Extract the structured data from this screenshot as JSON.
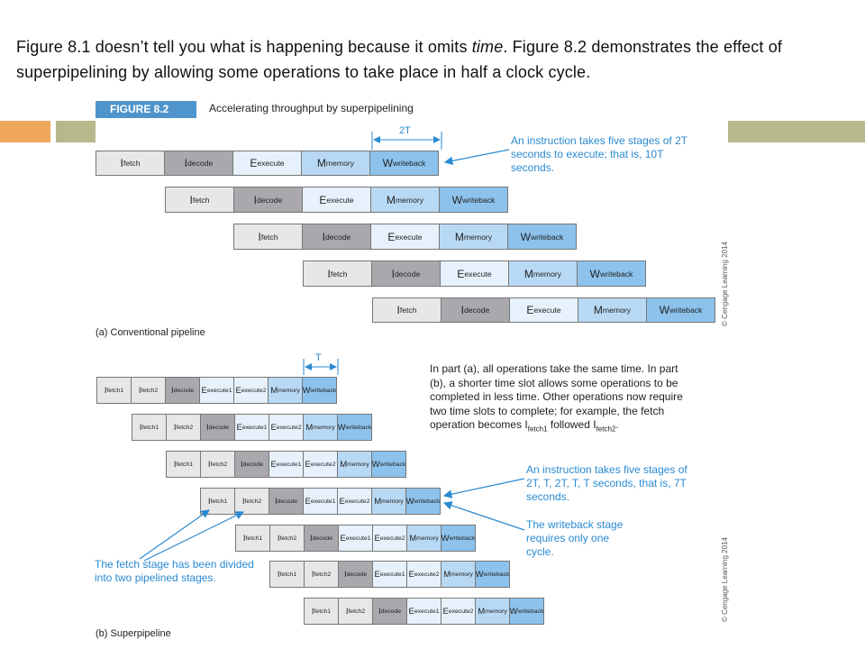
{
  "intro": {
    "part1": "Figure 8.1 doesn’t tell you what is happening because it omits ",
    "part_italic": "time",
    "part2": ". Figure 8.2 demonstrates the effect of superpipelining by allowing some operations to take place in half a clock cycle."
  },
  "figure": {
    "badge": "FIGURE 8.2",
    "caption": "Accelerating throughput by superpipelining",
    "copyright": "© Cengage Learning 2014"
  },
  "part_a": {
    "label": "(a) Conventional pipeline",
    "dimension_label": "2T",
    "note": "An instruction takes five stages of 2T seconds to execute; that is, 10T seconds.",
    "stages": [
      {
        "main": "I",
        "sub": "fetch",
        "kind": "fetch"
      },
      {
        "main": "I",
        "sub": "decode",
        "kind": "decode"
      },
      {
        "main": "E",
        "sub": "execute",
        "kind": "execute"
      },
      {
        "main": "M",
        "sub": "memory",
        "kind": "memory"
      },
      {
        "main": "W",
        "sub": "writeback",
        "kind": "writeback"
      }
    ]
  },
  "part_b": {
    "label": "(b) Superpipeline",
    "dimension_label": "T",
    "explanation_1": "In part (a), all operations take the same time. In part (b), a shorter time slot allows some operations to be completed in less time. Other operations now require two time slots to complete; for example, the fetch operation becomes I",
    "explanation_sub1": "fetch1",
    "explanation_2": " followed I",
    "explanation_sub2": "fetch2",
    "explanation_3": ".",
    "note_stages": "An instruction takes five stages of 2T, T, 2T, T, T seconds, that is, 7T seconds.",
    "note_writeback": "The writeback stage requires only one cycle.",
    "note_fetch": "The fetch stage has been divided into two pipelined stages.",
    "stages": [
      {
        "main": "I",
        "sub": "fetch1",
        "kind": "fetch"
      },
      {
        "main": "I",
        "sub": "fetch2",
        "kind": "fetch"
      },
      {
        "main": "I",
        "sub": "decode",
        "kind": "decode"
      },
      {
        "main": "E",
        "sub": "execute1",
        "kind": "execute"
      },
      {
        "main": "E",
        "sub": "execute2",
        "kind": "execute"
      },
      {
        "main": "M",
        "sub": "memory",
        "kind": "memory"
      },
      {
        "main": "W",
        "sub": "writeback",
        "kind": "writeback"
      }
    ]
  }
}
